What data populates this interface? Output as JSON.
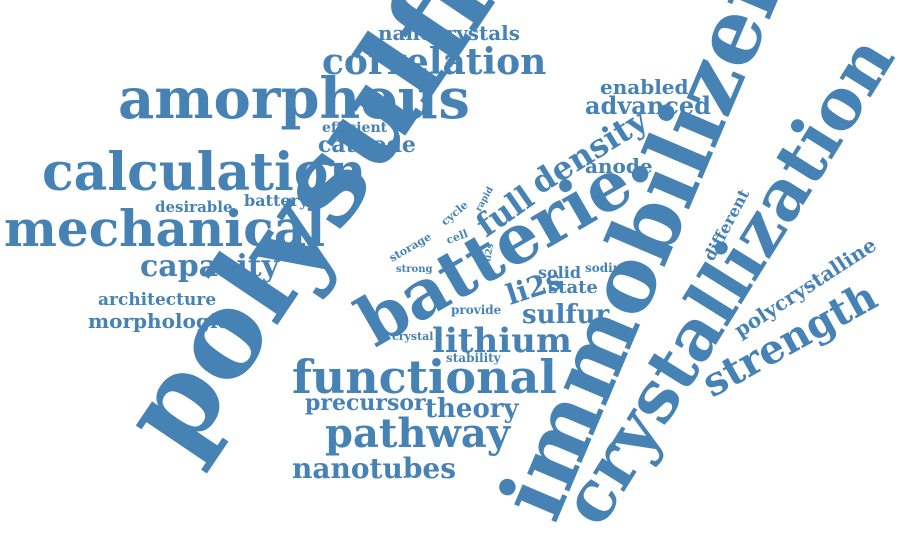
{
  "style": {
    "word_color": "#4682b4",
    "background": "#ffffff"
  },
  "words": {
    "polysulfide": "polysulfide",
    "immobilizer": "immobilizer",
    "crystallization": "crystallization",
    "batterie": "batterie",
    "amorphous": "amorphous",
    "calculation": "calculation",
    "mechanical": "mechanical",
    "functional": "functional",
    "pathway": "pathway",
    "nanotubes": "nanotubes",
    "strength": "strength",
    "correlation": "correlation",
    "lithium": "lithium",
    "density": "density",
    "capacity": "capacity",
    "theory": "theory",
    "precursor": "precursor",
    "full": "full",
    "nanocrystals": "nanocrystals",
    "advanced": "advanced",
    "enabled": "enabled",
    "cathode": "cathode",
    "efficient": "efficient",
    "anode": "anode",
    "battery": "battery",
    "desirable": "desirable",
    "architecture": "architecture",
    "morphologies": "morphologies",
    "sulfur": "sulfur",
    "li2s": "li2s",
    "solid": "solid",
    "state": "state",
    "sodium": "sodium",
    "different": "different",
    "polycrystalline": "polycrystalline",
    "cycle": "cycle",
    "rapid": "rapid",
    "storage": "storage",
    "cell": "cell",
    "strong": "strong",
    "li2s_small": "li2s",
    "provide": "provide",
    "crystal": "crystal",
    "stability": "stability"
  }
}
